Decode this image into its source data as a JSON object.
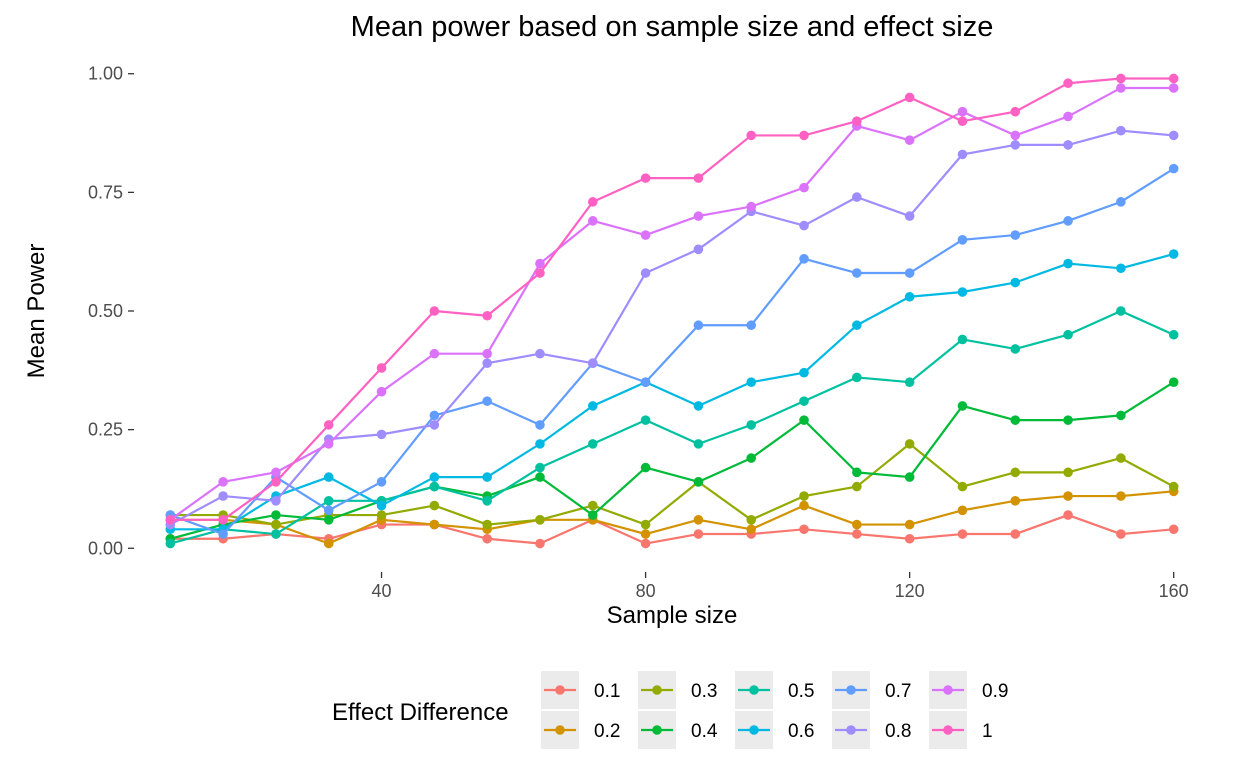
{
  "chart_data": {
    "type": "line",
    "title": "Mean power based on sample size and effect size",
    "xlabel": "Sample size",
    "ylabel": "Mean Power",
    "x": [
      8,
      16,
      24,
      32,
      40,
      48,
      56,
      64,
      72,
      80,
      88,
      96,
      104,
      112,
      120,
      128,
      136,
      144,
      152,
      160
    ],
    "xlim": [
      2.5,
      165.5
    ],
    "ylim": [
      -0.05,
      1.05
    ],
    "x_ticks": [
      40,
      80,
      120,
      160
    ],
    "x_tick_labels": [
      "40",
      "80",
      "120",
      "160"
    ],
    "y_ticks": [
      0,
      0.25,
      0.5,
      0.75,
      1
    ],
    "y_tick_labels": [
      "0.00",
      "0.25",
      "0.50",
      "0.75",
      "1.00"
    ],
    "grid": false,
    "legend_position": "bottom",
    "legend_title": "Effect Difference",
    "series": [
      {
        "name": "0.1",
        "color": "#F8766D",
        "values": [
          0.02,
          0.02,
          0.03,
          0.02,
          0.05,
          0.05,
          0.02,
          0.01,
          0.06,
          0.01,
          0.03,
          0.03,
          0.04,
          0.03,
          0.02,
          0.03,
          0.03,
          0.07,
          0.03,
          0.04
        ]
      },
      {
        "name": "0.2",
        "color": "#D39200",
        "values": [
          0.06,
          0.06,
          0.05,
          0.01,
          0.06,
          0.05,
          0.04,
          0.06,
          0.06,
          0.03,
          0.06,
          0.04,
          0.09,
          0.05,
          0.05,
          0.08,
          0.1,
          0.11,
          0.11,
          0.12
        ]
      },
      {
        "name": "0.3",
        "color": "#93AA00",
        "values": [
          0.07,
          0.07,
          0.05,
          0.07,
          0.07,
          0.09,
          0.05,
          0.06,
          0.09,
          0.05,
          0.14,
          0.06,
          0.11,
          0.13,
          0.22,
          0.13,
          0.16,
          0.16,
          0.19,
          0.13
        ]
      },
      {
        "name": "0.4",
        "color": "#00BA38",
        "values": [
          0.02,
          0.05,
          0.07,
          0.06,
          0.1,
          0.13,
          0.11,
          0.15,
          0.07,
          0.17,
          0.14,
          0.19,
          0.27,
          0.16,
          0.15,
          0.3,
          0.27,
          0.27,
          0.28,
          0.35
        ]
      },
      {
        "name": "0.5",
        "color": "#00C19F",
        "values": [
          0.01,
          0.04,
          0.03,
          0.1,
          0.1,
          0.13,
          0.1,
          0.17,
          0.22,
          0.27,
          0.22,
          0.26,
          0.31,
          0.36,
          0.35,
          0.44,
          0.42,
          0.45,
          0.5,
          0.45
        ]
      },
      {
        "name": "0.6",
        "color": "#00B9E3",
        "values": [
          0.04,
          0.04,
          0.11,
          0.15,
          0.09,
          0.15,
          0.15,
          0.22,
          0.3,
          0.35,
          0.3,
          0.35,
          0.37,
          0.47,
          0.53,
          0.54,
          0.56,
          0.6,
          0.59,
          0.62
        ]
      },
      {
        "name": "0.7",
        "color": "#619CFF",
        "values": [
          0.07,
          0.03,
          0.15,
          0.08,
          0.14,
          0.28,
          0.31,
          0.26,
          0.39,
          0.35,
          0.47,
          0.47,
          0.61,
          0.58,
          0.58,
          0.65,
          0.66,
          0.69,
          0.73,
          0.8
        ]
      },
      {
        "name": "0.8",
        "color": "#9F8CFF",
        "values": [
          0.05,
          0.11,
          0.1,
          0.23,
          0.24,
          0.26,
          0.39,
          0.41,
          0.39,
          0.58,
          0.63,
          0.71,
          0.68,
          0.74,
          0.7,
          0.83,
          0.85,
          0.85,
          0.88,
          0.87
        ]
      },
      {
        "name": "0.9",
        "color": "#DB72FB",
        "values": [
          0.06,
          0.14,
          0.16,
          0.22,
          0.33,
          0.41,
          0.41,
          0.6,
          0.69,
          0.66,
          0.7,
          0.72,
          0.76,
          0.89,
          0.86,
          0.92,
          0.87,
          0.91,
          0.97,
          0.97
        ]
      },
      {
        "name": "1",
        "color": "#FF61C3",
        "values": [
          0.06,
          0.06,
          0.14,
          0.26,
          0.38,
          0.5,
          0.49,
          0.58,
          0.73,
          0.78,
          0.78,
          0.87,
          0.87,
          0.9,
          0.95,
          0.9,
          0.92,
          0.98,
          0.99,
          0.99
        ]
      }
    ]
  }
}
